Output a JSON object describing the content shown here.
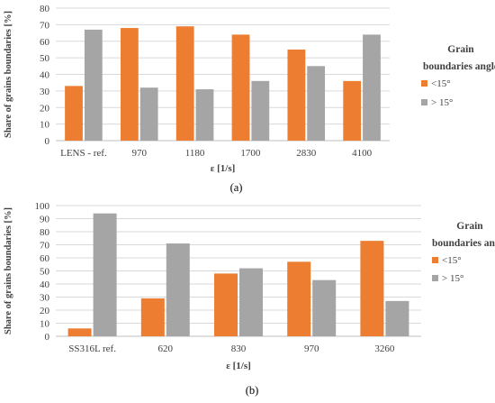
{
  "colors": {
    "lt15": "#ED7D31",
    "gt15": "#A5A5A5",
    "grid": "#D9D9D9",
    "text": "#404040"
  },
  "chart_data": [
    {
      "type": "bar",
      "panel_label": "(a)",
      "xlabel": "ε [1/s]",
      "ylabel": "Share of grains boundaries [%]",
      "ylim": [
        0,
        80
      ],
      "yticks": [
        0,
        10,
        20,
        30,
        40,
        50,
        60,
        70,
        80
      ],
      "grid": true,
      "legend_title": [
        "Grain",
        "boundaries angle"
      ],
      "legend_position": "right",
      "categories": [
        "LENS - ref.",
        "970",
        "1180",
        "1700",
        "2830",
        "4100"
      ],
      "series": [
        {
          "name": "<15°",
          "color_key": "lt15",
          "values": [
            33,
            68,
            69,
            64,
            55,
            36
          ]
        },
        {
          "name": "> 15°",
          "color_key": "gt15",
          "values": [
            67,
            32,
            31,
            36,
            45,
            64
          ]
        }
      ]
    },
    {
      "type": "bar",
      "panel_label": "(b)",
      "xlabel": "ε [1/s]",
      "ylabel": "Share of grains boundaries [%]",
      "ylim": [
        0,
        100
      ],
      "yticks": [
        0,
        10,
        20,
        30,
        40,
        50,
        60,
        70,
        80,
        90,
        100
      ],
      "grid": true,
      "legend_title": [
        "Grain",
        "boundaries angle"
      ],
      "legend_position": "right",
      "categories": [
        "SS316L ref.",
        "620",
        "830",
        "970",
        "3260"
      ],
      "series": [
        {
          "name": "<15°",
          "color_key": "lt15",
          "values": [
            6,
            29,
            48,
            57,
            73
          ]
        },
        {
          "name": "> 15°",
          "color_key": "gt15",
          "values": [
            94,
            71,
            52,
            43,
            27
          ]
        }
      ]
    }
  ]
}
